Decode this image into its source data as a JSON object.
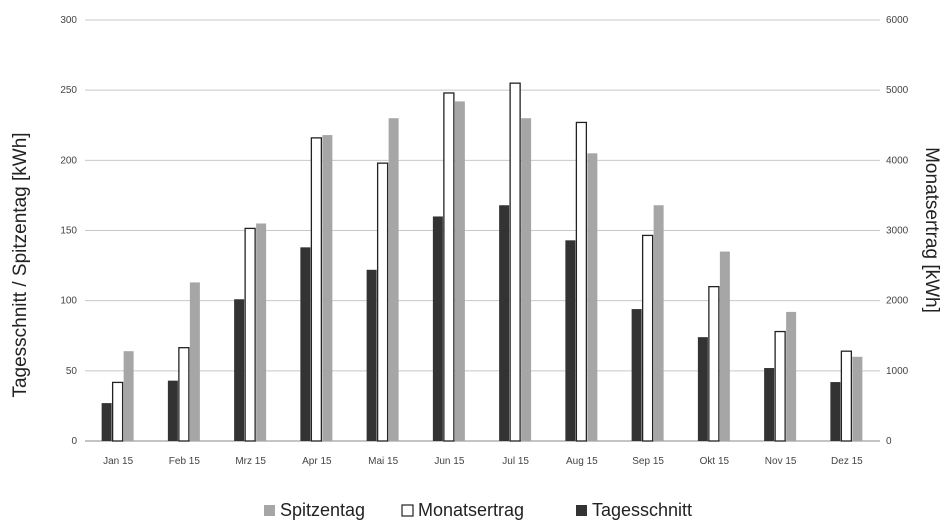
{
  "chart_data": {
    "type": "bar",
    "categories": [
      "Jan 15",
      "Feb 15",
      "Mrz 15",
      "Apr 15",
      "Mai 15",
      "Jun 15",
      "Jul 15",
      "Aug 15",
      "Sep 15",
      "Okt 15",
      "Nov 15",
      "Dez 15"
    ],
    "series": [
      {
        "name": "Tagesschnitt",
        "axis": "left",
        "color": "#333333",
        "values": [
          27,
          43,
          101,
          138,
          122,
          160,
          168,
          143,
          94,
          74,
          52,
          42
        ]
      },
      {
        "name": "Monatsertrag",
        "axis": "right",
        "color": "#ffffff",
        "values": [
          835,
          1330,
          3030,
          4320,
          3960,
          4960,
          5100,
          4540,
          2930,
          2200,
          1560,
          1280
        ]
      },
      {
        "name": "Spitzentag",
        "axis": "left",
        "color": "#a6a6a6",
        "values": [
          64,
          113,
          155,
          218,
          230,
          242,
          230,
          205,
          168,
          135,
          92,
          60
        ]
      }
    ],
    "ylabel": "Tagesschnitt / Spitzentag [kWh]",
    "ylabel_right": "Monatsertrag [kWh]",
    "ylim": [
      0,
      300
    ],
    "ylim_right": [
      0,
      6000
    ],
    "yticks": [
      "0",
      "50",
      "100",
      "150",
      "200",
      "250",
      "300"
    ],
    "yticks_right": [
      "0",
      "1000",
      "2000",
      "3000",
      "4000",
      "5000",
      "6000"
    ],
    "grid": "horizontal",
    "legend": {
      "position": "bottom",
      "entries": [
        "Spitzentag",
        "Monatsertrag",
        "Tagesschnitt"
      ]
    }
  }
}
